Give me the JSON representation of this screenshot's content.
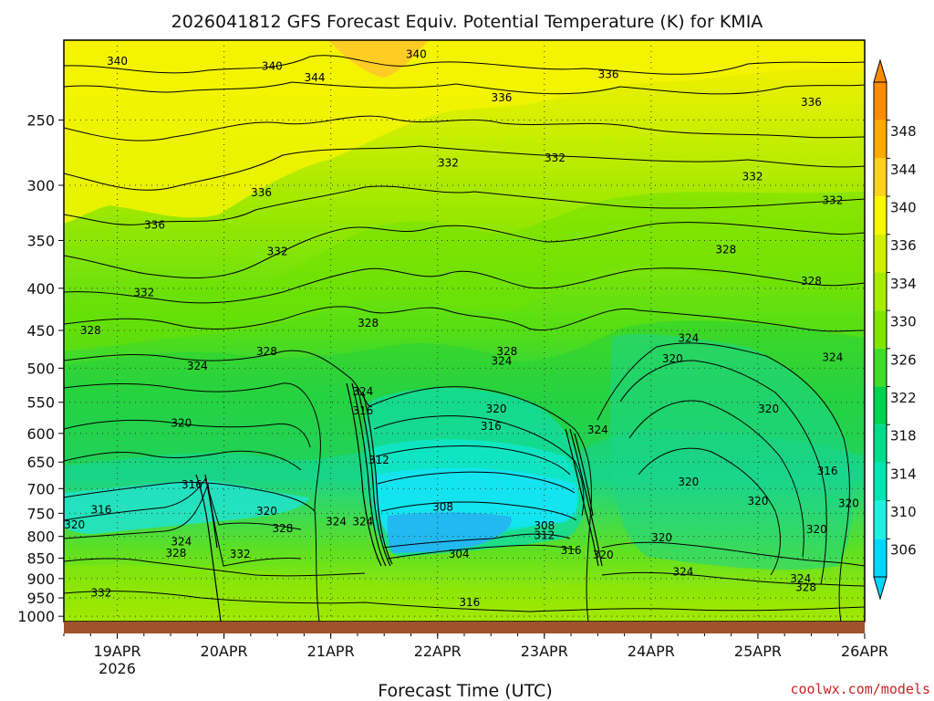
{
  "chart_data": {
    "type": "heatmap",
    "title": "2026041812 GFS Forecast Equiv. Potential Temperature (K) for KMIA",
    "xlabel": "Forecast Time (UTC)",
    "ylabel": "",
    "x_tick_labels": [
      "19APR",
      "20APR",
      "21APR",
      "22APR",
      "23APR",
      "24APR",
      "25APR",
      "26APR"
    ],
    "x_year_label": "2026",
    "x_range_days": [
      18.5,
      26.0
    ],
    "y_tick_labels": [
      "250",
      "300",
      "350",
      "400",
      "450",
      "500",
      "550",
      "600",
      "650",
      "700",
      "750",
      "800",
      "850",
      "900",
      "950",
      "1000"
    ],
    "y_range_hpa": [
      200,
      1015
    ],
    "colorbar": {
      "labels": [
        "306",
        "310",
        "314",
        "318",
        "322",
        "326",
        "330",
        "334",
        "336",
        "340",
        "344",
        "348"
      ],
      "colors": [
        "#00d7ff",
        "#20f0e0",
        "#00e6b4",
        "#00dc8c",
        "#00d250",
        "#40dc28",
        "#80e600",
        "#a8ec00",
        "#d0f000",
        "#f8f800",
        "#ffd020",
        "#ffaa00",
        "#ff8c00"
      ]
    },
    "contour_labels": [
      {
        "text": "340",
        "x": 19.0,
        "y": 212
      },
      {
        "text": "340",
        "x": 20.45,
        "y": 215
      },
      {
        "text": "344",
        "x": 20.85,
        "y": 222
      },
      {
        "text": "340",
        "x": 21.8,
        "y": 208
      },
      {
        "text": "336",
        "x": 22.6,
        "y": 235
      },
      {
        "text": "336",
        "x": 23.6,
        "y": 220
      },
      {
        "text": "336",
        "x": 25.5,
        "y": 238
      },
      {
        "text": "332",
        "x": 22.1,
        "y": 282
      },
      {
        "text": "332",
        "x": 23.1,
        "y": 278
      },
      {
        "text": "332",
        "x": 24.95,
        "y": 293
      },
      {
        "text": "332",
        "x": 25.7,
        "y": 313
      },
      {
        "text": "336",
        "x": 20.35,
        "y": 306
      },
      {
        "text": "336",
        "x": 19.35,
        "y": 335
      },
      {
        "text": "332",
        "x": 20.5,
        "y": 361
      },
      {
        "text": "332",
        "x": 19.25,
        "y": 405
      },
      {
        "text": "328",
        "x": 24.7,
        "y": 359
      },
      {
        "text": "328",
        "x": 25.5,
        "y": 392
      },
      {
        "text": "328",
        "x": 18.75,
        "y": 450
      },
      {
        "text": "328",
        "x": 21.35,
        "y": 441
      },
      {
        "text": "328",
        "x": 20.4,
        "y": 477
      },
      {
        "text": "328",
        "x": 22.65,
        "y": 477
      },
      {
        "text": "324",
        "x": 24.35,
        "y": 460
      },
      {
        "text": "324",
        "x": 25.7,
        "y": 485
      },
      {
        "text": "320",
        "x": 24.2,
        "y": 487
      },
      {
        "text": "324",
        "x": 22.6,
        "y": 490
      },
      {
        "text": "324",
        "x": 19.75,
        "y": 497
      },
      {
        "text": "324",
        "x": 21.3,
        "y": 534
      },
      {
        "text": "316",
        "x": 21.3,
        "y": 563
      },
      {
        "text": "320",
        "x": 22.55,
        "y": 560
      },
      {
        "text": "316",
        "x": 22.5,
        "y": 588
      },
      {
        "text": "320",
        "x": 25.1,
        "y": 560
      },
      {
        "text": "324",
        "x": 23.5,
        "y": 594
      },
      {
        "text": "320",
        "x": 19.6,
        "y": 583
      },
      {
        "text": "312",
        "x": 21.45,
        "y": 646
      },
      {
        "text": "320",
        "x": 24.35,
        "y": 687
      },
      {
        "text": "316",
        "x": 25.65,
        "y": 666
      },
      {
        "text": "316",
        "x": 19.7,
        "y": 692
      },
      {
        "text": "320",
        "x": 25.0,
        "y": 725
      },
      {
        "text": "320",
        "x": 25.85,
        "y": 730
      },
      {
        "text": "308",
        "x": 22.05,
        "y": 737
      },
      {
        "text": "316",
        "x": 18.85,
        "y": 743
      },
      {
        "text": "320",
        "x": 20.4,
        "y": 746
      },
      {
        "text": "324",
        "x": 21.3,
        "y": 768
      },
      {
        "text": "324",
        "x": 21.05,
        "y": 768
      },
      {
        "text": "328",
        "x": 20.55,
        "y": 783
      },
      {
        "text": "320",
        "x": 18.6,
        "y": 775
      },
      {
        "text": "308",
        "x": 23.0,
        "y": 777
      },
      {
        "text": "312",
        "x": 23.0,
        "y": 798
      },
      {
        "text": "320",
        "x": 24.1,
        "y": 803
      },
      {
        "text": "320",
        "x": 25.55,
        "y": 785
      },
      {
        "text": "324",
        "x": 19.6,
        "y": 812
      },
      {
        "text": "316",
        "x": 23.25,
        "y": 832
      },
      {
        "text": "328",
        "x": 19.55,
        "y": 838
      },
      {
        "text": "332",
        "x": 20.15,
        "y": 840
      },
      {
        "text": "304",
        "x": 22.2,
        "y": 840
      },
      {
        "text": "320",
        "x": 23.55,
        "y": 843
      },
      {
        "text": "324",
        "x": 24.3,
        "y": 883
      },
      {
        "text": "324",
        "x": 25.4,
        "y": 900
      },
      {
        "text": "328",
        "x": 25.45,
        "y": 922
      },
      {
        "text": "332",
        "x": 18.85,
        "y": 937
      },
      {
        "text": "316",
        "x": 22.3,
        "y": 962
      }
    ]
  },
  "credit": "coolwx.com/models"
}
